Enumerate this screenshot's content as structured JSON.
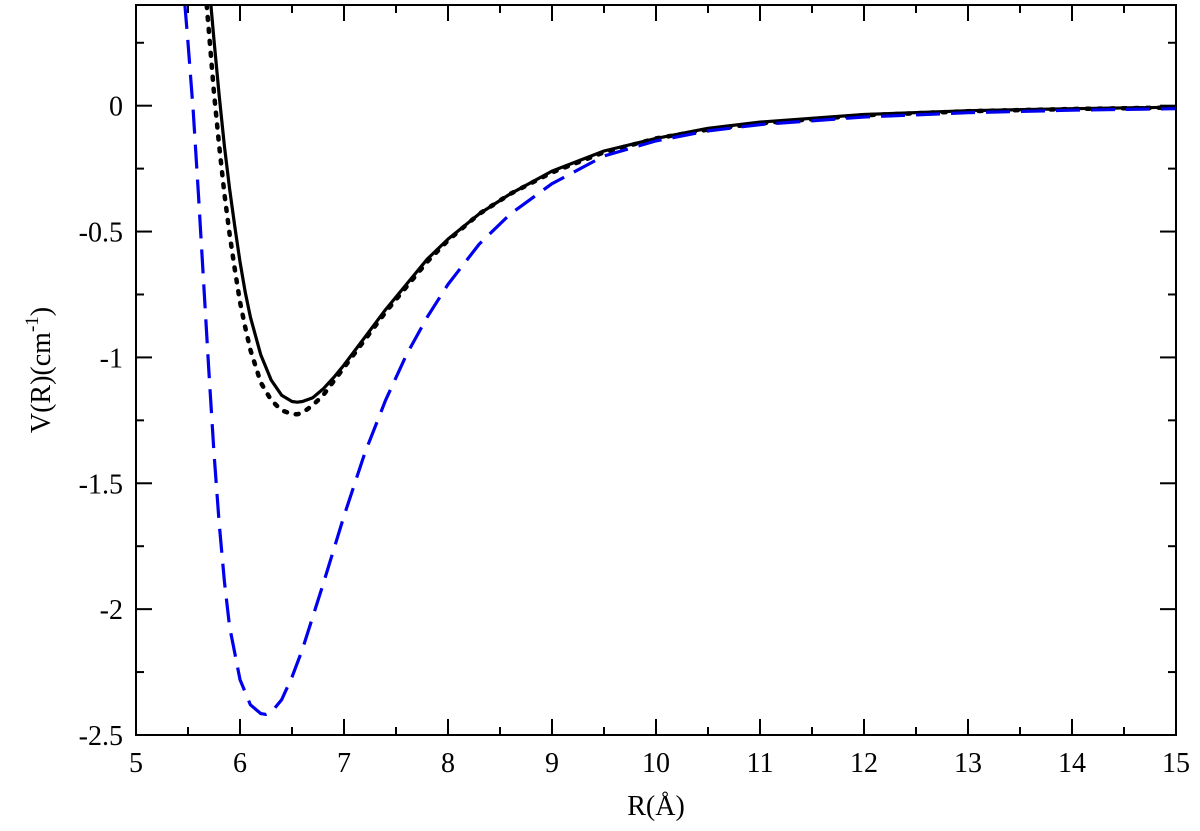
{
  "chart_data": {
    "type": "line",
    "title": "",
    "xlabel": "R(Å)",
    "ylabel": {
      "pre": "V(R)(cm",
      "sup": "-1",
      "post": ")"
    },
    "xlim": [
      5,
      15
    ],
    "ylim": [
      -2.5,
      0.4
    ],
    "xticks": [
      5,
      6,
      7,
      8,
      9,
      10,
      11,
      12,
      13,
      14,
      15
    ],
    "xtick_labels": [
      "5",
      "6",
      "7",
      "8",
      "9",
      "10",
      "11",
      "12",
      "13",
      "14",
      "15"
    ],
    "yticks": [
      -2.5,
      -2,
      -1.5,
      -1,
      -0.5,
      0
    ],
    "ytick_labels": [
      "-2.5",
      "-2",
      "-1.5",
      "-1",
      "-0.5",
      "0"
    ],
    "grid": false,
    "legend": "none",
    "series": [
      {
        "style": "solid",
        "color": "#000000",
        "x": [
          5.72,
          5.75,
          5.8,
          5.85,
          5.9,
          5.95,
          6.0,
          6.05,
          6.1,
          6.2,
          6.3,
          6.4,
          6.5,
          6.55,
          6.6,
          6.7,
          6.8,
          6.9,
          7.0,
          7.2,
          7.4,
          7.6,
          7.8,
          8.0,
          8.3,
          8.6,
          9.0,
          9.5,
          10.0,
          10.5,
          11.0,
          12.0,
          13.0,
          14.0,
          15.0
        ],
        "y": [
          0.4,
          0.26,
          0.04,
          -0.16,
          -0.33,
          -0.48,
          -0.62,
          -0.74,
          -0.84,
          -0.99,
          -1.09,
          -1.15,
          -1.175,
          -1.178,
          -1.175,
          -1.16,
          -1.125,
          -1.08,
          -1.03,
          -0.92,
          -0.81,
          -0.71,
          -0.61,
          -0.53,
          -0.43,
          -0.35,
          -0.26,
          -0.18,
          -0.13,
          -0.09,
          -0.065,
          -0.035,
          -0.02,
          -0.012,
          -0.006
        ]
      },
      {
        "style": "dotted",
        "color": "#000000",
        "x": [
          5.68,
          5.7,
          5.75,
          5.8,
          5.85,
          5.9,
          5.95,
          6.0,
          6.05,
          6.1,
          6.2,
          6.3,
          6.4,
          6.5,
          6.55,
          6.6,
          6.7,
          6.8,
          6.9,
          7.0,
          7.2,
          7.4,
          7.6,
          7.8,
          8.0,
          8.3,
          8.6,
          9.0,
          9.5,
          10.0,
          10.5,
          11.0,
          12.0,
          13.0,
          14.0,
          15.0
        ],
        "y": [
          0.4,
          0.3,
          0.05,
          -0.16,
          -0.35,
          -0.51,
          -0.65,
          -0.78,
          -0.88,
          -0.97,
          -1.1,
          -1.17,
          -1.21,
          -1.225,
          -1.226,
          -1.22,
          -1.19,
          -1.15,
          -1.095,
          -1.04,
          -0.93,
          -0.82,
          -0.72,
          -0.62,
          -0.535,
          -0.43,
          -0.35,
          -0.265,
          -0.185,
          -0.13,
          -0.095,
          -0.07,
          -0.038,
          -0.022,
          -0.013,
          -0.007
        ]
      },
      {
        "style": "dashed",
        "color": "#0000ee",
        "x": [
          5.47,
          5.5,
          5.55,
          5.6,
          5.65,
          5.7,
          5.75,
          5.8,
          5.85,
          5.9,
          6.0,
          6.1,
          6.2,
          6.25,
          6.3,
          6.4,
          6.5,
          6.6,
          6.7,
          6.8,
          7.0,
          7.2,
          7.4,
          7.6,
          7.8,
          8.0,
          8.3,
          8.6,
          9.0,
          9.5,
          10.0,
          10.5,
          11.0,
          12.0,
          13.0,
          14.0,
          15.0
        ],
        "y": [
          0.4,
          0.25,
          -0.02,
          -0.35,
          -0.7,
          -1.05,
          -1.38,
          -1.66,
          -1.89,
          -2.07,
          -2.28,
          -2.38,
          -2.415,
          -2.418,
          -2.41,
          -2.36,
          -2.27,
          -2.16,
          -2.03,
          -1.9,
          -1.63,
          -1.38,
          -1.17,
          -0.99,
          -0.84,
          -0.71,
          -0.55,
          -0.43,
          -0.31,
          -0.2,
          -0.14,
          -0.1,
          -0.075,
          -0.045,
          -0.028,
          -0.018,
          -0.012
        ]
      }
    ]
  }
}
